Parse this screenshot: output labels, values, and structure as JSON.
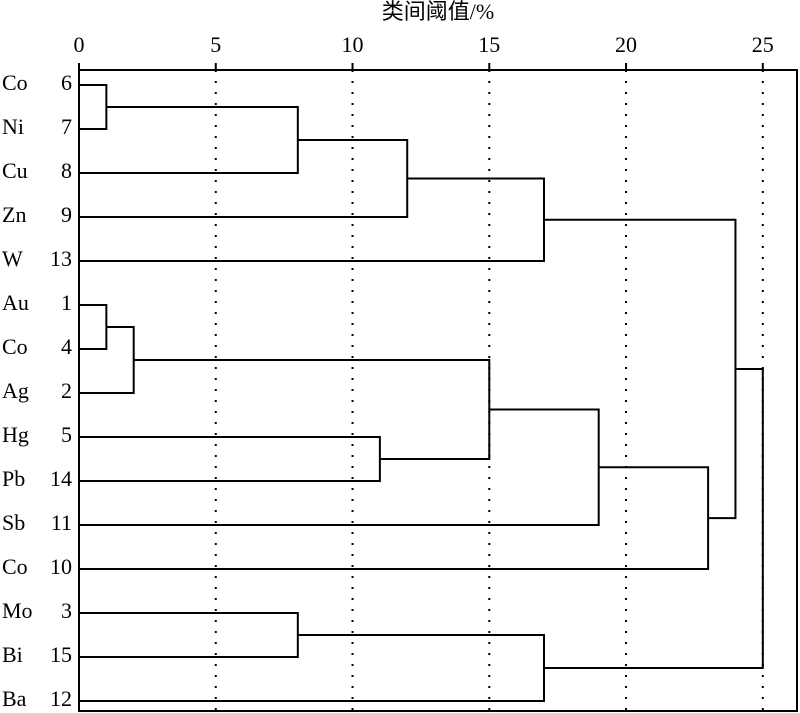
{
  "chart_data": {
    "type": "dendrogram",
    "xlabel": "类间阈值/%",
    "xlim": [
      0,
      26.25
    ],
    "xticks": [
      0,
      5,
      10,
      15,
      20,
      25
    ],
    "grid": true,
    "color": "#000000",
    "leaves": [
      {
        "label": "Co",
        "id": 6
      },
      {
        "label": "Ni",
        "id": 7
      },
      {
        "label": "Cu",
        "id": 8
      },
      {
        "label": "Zn",
        "id": 9
      },
      {
        "label": "W",
        "id": 13
      },
      {
        "label": "Au",
        "id": 1
      },
      {
        "label": "Co",
        "id": 4
      },
      {
        "label": "Ag",
        "id": 2
      },
      {
        "label": "Hg",
        "id": 5
      },
      {
        "label": "Pb",
        "id": 14
      },
      {
        "label": "Sb",
        "id": 11
      },
      {
        "label": "Co",
        "id": 10
      },
      {
        "label": "Mo",
        "id": 3
      },
      {
        "label": "Bi",
        "id": 15
      },
      {
        "label": "Ba",
        "id": 12
      }
    ],
    "merges": [
      {
        "children": [
          0,
          1
        ],
        "height": 1
      },
      {
        "children": [
          15,
          2
        ],
        "height": 8
      },
      {
        "children": [
          16,
          3
        ],
        "height": 12
      },
      {
        "children": [
          17,
          4
        ],
        "height": 17
      },
      {
        "children": [
          5,
          6
        ],
        "height": 1
      },
      {
        "children": [
          19,
          7
        ],
        "height": 2
      },
      {
        "children": [
          8,
          9
        ],
        "height": 11
      },
      {
        "children": [
          20,
          21
        ],
        "height": 15
      },
      {
        "children": [
          22,
          10
        ],
        "height": 19
      },
      {
        "children": [
          23,
          11
        ],
        "height": 23
      },
      {
        "children": [
          18,
          24
        ],
        "height": 24
      },
      {
        "children": [
          12,
          13
        ],
        "height": 8
      },
      {
        "children": [
          26,
          14
        ],
        "height": 17
      },
      {
        "children": [
          25,
          27
        ],
        "height": 25
      }
    ]
  }
}
